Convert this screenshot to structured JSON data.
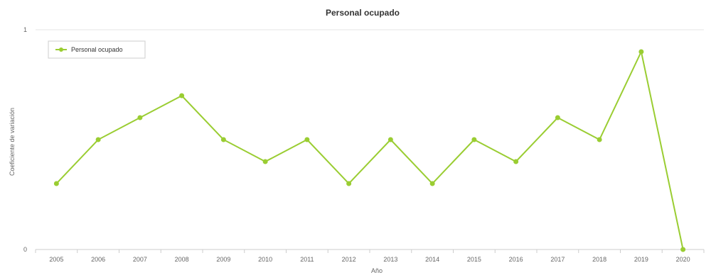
{
  "chart_data": {
    "type": "line",
    "title": "Personal ocupado",
    "xlabel": "Año",
    "ylabel": "Coeficiente de variación",
    "categories": [
      "2005",
      "2006",
      "2007",
      "2008",
      "2009",
      "2010",
      "2011",
      "2012",
      "2013",
      "2014",
      "2015",
      "2016",
      "2017",
      "2018",
      "2019",
      "2020"
    ],
    "series": [
      {
        "name": "Personal ocupado",
        "values": [
          0.3,
          0.5,
          0.6,
          0.7,
          0.5,
          0.4,
          0.5,
          0.3,
          0.5,
          0.3,
          0.5,
          0.4,
          0.6,
          0.5,
          0.9,
          0.0
        ]
      }
    ],
    "ylim": [
      0,
      1
    ],
    "yticks": [
      "0",
      "1"
    ],
    "grid": true,
    "legend": "top-left",
    "colors": {
      "line": "#9acd32",
      "grid": "#e6e6e6",
      "axis": "#cccccc"
    }
  }
}
